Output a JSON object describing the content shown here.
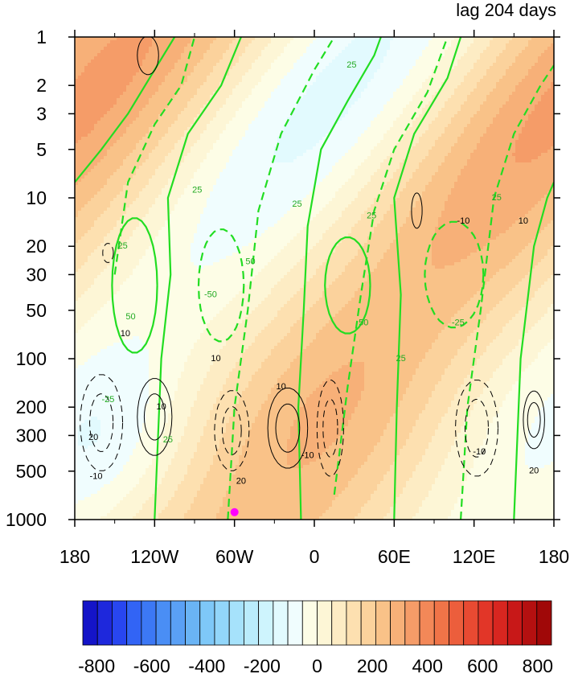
{
  "chart_data": {
    "type": "heatmap",
    "title": "lag 204 days",
    "x": {
      "tick_labels": [
        "180",
        "120W",
        "60W",
        "0",
        "60E",
        "120E",
        "180"
      ],
      "tick_values": [
        -180,
        -120,
        -60,
        0,
        60,
        120,
        180
      ],
      "range": [
        -180,
        180
      ]
    },
    "y": {
      "scale": "log",
      "reversed": true,
      "tick_labels": [
        "1",
        "2",
        "3",
        "5",
        "10",
        "20",
        "30",
        "50",
        "100",
        "200",
        "300",
        "500",
        "1000"
      ],
      "tick_values": [
        1,
        2,
        3,
        5,
        10,
        20,
        30,
        50,
        100,
        200,
        300,
        500,
        1000
      ],
      "range": [
        1,
        1000
      ]
    },
    "colorbar": {
      "tick_labels": [
        "-800",
        "-600",
        "-400",
        "-200",
        "0",
        "200",
        "400",
        "600",
        "800"
      ],
      "tick_values": [
        -800,
        -600,
        -400,
        -200,
        0,
        200,
        400,
        600,
        800
      ],
      "levels": [
        -850,
        -800,
        -750,
        -700,
        -650,
        -600,
        -550,
        -500,
        -450,
        -400,
        -350,
        -300,
        -250,
        -200,
        -150,
        -100,
        -50,
        0,
        50,
        100,
        150,
        200,
        250,
        300,
        350,
        400,
        450,
        500,
        550,
        600,
        650,
        700,
        750,
        800,
        850
      ],
      "colors": [
        "#1414c8",
        "#1e28dc",
        "#2846f0",
        "#3264f5",
        "#3c78f5",
        "#4a8ef5",
        "#5aa0f5",
        "#6ab4f5",
        "#7ec8f8",
        "#92d6fa",
        "#a6e2fb",
        "#baecfc",
        "#cef4fd",
        "#e2fafe",
        "#f0fdfe",
        "#fdfde6",
        "#fdf6d6",
        "#fdecc4",
        "#fde0b0",
        "#fbd29c",
        "#f9c288",
        "#f7b078",
        "#f59c68",
        "#f38858",
        "#f07448",
        "#ec5e3c",
        "#e84a32",
        "#e23628",
        "#d82620",
        "#c81818",
        "#b41010",
        "#a00808"
      ]
    },
    "contours": {
      "black_labels": [
        "10",
        "20",
        "-10"
      ],
      "green_labels": [
        "25",
        "50",
        "-25",
        "-50"
      ]
    },
    "marker": {
      "lon": -60,
      "pressure": 900,
      "color": "#ff00ff"
    }
  }
}
